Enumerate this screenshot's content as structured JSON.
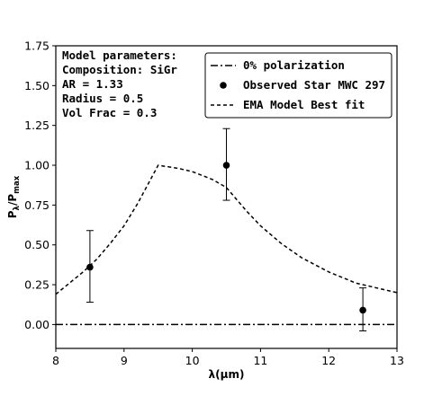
{
  "chart_data": {
    "type": "line",
    "xlabel": "λ(μm)",
    "ylabel": "Pλ/Pmax",
    "ylabel_main": "P",
    "ylabel_sub1": "λ",
    "ylabel_mid": "/P",
    "ylabel_sub2": "max",
    "xlim": [
      8,
      13
    ],
    "ylim": [
      -0.15,
      1.75
    ],
    "xticks": [
      8,
      9,
      10,
      11,
      12,
      13
    ],
    "yticks": [
      0.0,
      0.25,
      0.5,
      0.75,
      1.0,
      1.25,
      1.5,
      1.75
    ],
    "xtick_labels": [
      "8",
      "9",
      "10",
      "11",
      "12",
      "13"
    ],
    "ytick_labels": [
      "0.00",
      "0.25",
      "0.50",
      "0.75",
      "1.00",
      "1.25",
      "1.50",
      "1.75"
    ],
    "grid": false,
    "legend_position": "top-right",
    "annotation_lines": [
      "Model parameters:",
      "Composition: SiGr",
      "AR = 1.33",
      "Radius = 0.5",
      "Vol Frac = 0.3"
    ],
    "series": [
      {
        "name": "0% polarization",
        "style": "dashdot",
        "x": [
          8,
          13
        ],
        "y": [
          0,
          0
        ]
      },
      {
        "name": "Observed Star MWC 297",
        "style": "points-errorbars",
        "x": [
          8.5,
          10.5,
          12.5
        ],
        "y": [
          0.36,
          1.0,
          0.09
        ],
        "yerr_low": [
          0.22,
          0.22,
          0.13
        ],
        "yerr_high": [
          0.23,
          0.23,
          0.14
        ]
      },
      {
        "name": "EMA Model Best fit",
        "style": "dashed",
        "x": [
          8.0,
          8.2,
          8.4,
          8.6,
          8.8,
          9.0,
          9.2,
          9.4,
          9.5,
          9.8,
          10.0,
          10.3,
          10.5,
          10.8,
          11.0,
          11.3,
          11.6,
          12.0,
          12.4,
          12.8,
          13.0
        ],
        "y": [
          0.19,
          0.26,
          0.33,
          0.41,
          0.51,
          0.62,
          0.76,
          0.92,
          1.0,
          0.98,
          0.96,
          0.91,
          0.86,
          0.71,
          0.62,
          0.51,
          0.42,
          0.33,
          0.26,
          0.22,
          0.2
        ]
      }
    ]
  }
}
